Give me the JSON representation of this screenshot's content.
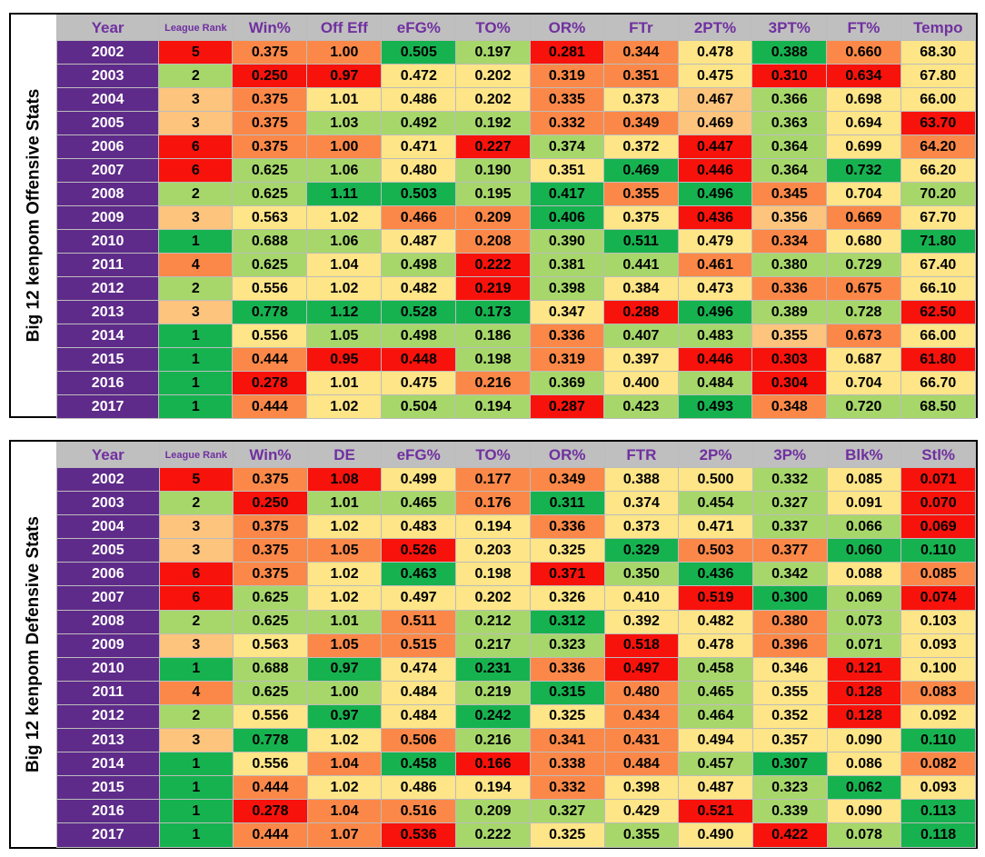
{
  "offense": {
    "side_label": "Big 12 kenpom Offensive Stats",
    "headers": [
      "Year",
      "League Rank",
      "Win%",
      "Off Eff",
      "eFG%",
      "TO%",
      "OR%",
      "FTr",
      "2PT%",
      "3PT%",
      "FT%",
      "Tempo"
    ],
    "rows": [
      [
        "2002",
        "5",
        "0.375",
        "1.00",
        "0.505",
        "0.197",
        "0.281",
        "0.344",
        "0.478",
        "0.388",
        "0.660",
        "68.30"
      ],
      [
        "2003",
        "2",
        "0.250",
        "0.97",
        "0.472",
        "0.202",
        "0.319",
        "0.351",
        "0.475",
        "0.310",
        "0.634",
        "67.80"
      ],
      [
        "2004",
        "3",
        "0.375",
        "1.01",
        "0.486",
        "0.202",
        "0.335",
        "0.373",
        "0.467",
        "0.366",
        "0.698",
        "66.00"
      ],
      [
        "2005",
        "3",
        "0.375",
        "1.03",
        "0.492",
        "0.192",
        "0.332",
        "0.349",
        "0.469",
        "0.363",
        "0.694",
        "63.70"
      ],
      [
        "2006",
        "6",
        "0.375",
        "1.00",
        "0.471",
        "0.227",
        "0.374",
        "0.372",
        "0.447",
        "0.364",
        "0.699",
        "64.20"
      ],
      [
        "2007",
        "6",
        "0.625",
        "1.06",
        "0.480",
        "0.190",
        "0.351",
        "0.469",
        "0.446",
        "0.364",
        "0.732",
        "66.20"
      ],
      [
        "2008",
        "2",
        "0.625",
        "1.11",
        "0.503",
        "0.195",
        "0.417",
        "0.355",
        "0.496",
        "0.345",
        "0.704",
        "70.20"
      ],
      [
        "2009",
        "3",
        "0.563",
        "1.02",
        "0.466",
        "0.209",
        "0.406",
        "0.375",
        "0.436",
        "0.356",
        "0.669",
        "67.70"
      ],
      [
        "2010",
        "1",
        "0.688",
        "1.06",
        "0.487",
        "0.208",
        "0.390",
        "0.511",
        "0.479",
        "0.334",
        "0.680",
        "71.80"
      ],
      [
        "2011",
        "4",
        "0.625",
        "1.04",
        "0.498",
        "0.222",
        "0.381",
        "0.441",
        "0.461",
        "0.380",
        "0.729",
        "67.40"
      ],
      [
        "2012",
        "2",
        "0.556",
        "1.02",
        "0.482",
        "0.219",
        "0.398",
        "0.384",
        "0.473",
        "0.336",
        "0.675",
        "66.10"
      ],
      [
        "2013",
        "3",
        "0.778",
        "1.12",
        "0.528",
        "0.173",
        "0.347",
        "0.288",
        "0.496",
        "0.389",
        "0.728",
        "62.50"
      ],
      [
        "2014",
        "1",
        "0.556",
        "1.05",
        "0.498",
        "0.186",
        "0.336",
        "0.407",
        "0.483",
        "0.355",
        "0.673",
        "66.00"
      ],
      [
        "2015",
        "1",
        "0.444",
        "0.95",
        "0.448",
        "0.198",
        "0.319",
        "0.397",
        "0.446",
        "0.303",
        "0.687",
        "61.80"
      ],
      [
        "2016",
        "1",
        "0.278",
        "1.01",
        "0.475",
        "0.216",
        "0.369",
        "0.400",
        "0.484",
        "0.304",
        "0.704",
        "66.70"
      ],
      [
        "2017",
        "1",
        "0.444",
        "1.02",
        "0.504",
        "0.194",
        "0.287",
        "0.423",
        "0.493",
        "0.348",
        "0.720",
        "68.50"
      ]
    ],
    "colors": [
      [
        "",
        "R",
        "O",
        "O",
        "G",
        "L",
        "R",
        "O",
        "Y",
        "G",
        "O",
        "Y"
      ],
      [
        "",
        "L",
        "R",
        "R",
        "Y",
        "Y",
        "O",
        "O",
        "Y",
        "R",
        "R",
        "Y"
      ],
      [
        "",
        "P",
        "O",
        "Y",
        "Y",
        "Y",
        "O",
        "Y",
        "P",
        "L",
        "Y",
        "Y"
      ],
      [
        "",
        "P",
        "O",
        "L",
        "L",
        "L",
        "O",
        "O",
        "P",
        "L",
        "Y",
        "R"
      ],
      [
        "",
        "R",
        "O",
        "O",
        "Y",
        "R",
        "L",
        "Y",
        "R",
        "L",
        "Y",
        "O"
      ],
      [
        "",
        "R",
        "L",
        "L",
        "Y",
        "L",
        "Y",
        "G",
        "R",
        "L",
        "G",
        "Y"
      ],
      [
        "",
        "L",
        "L",
        "G",
        "G",
        "L",
        "G",
        "O",
        "G",
        "O",
        "Y",
        "L"
      ],
      [
        "",
        "P",
        "Y",
        "Y",
        "O",
        "O",
        "G",
        "Y",
        "R",
        "P",
        "O",
        "Y"
      ],
      [
        "",
        "G",
        "L",
        "L",
        "Y",
        "O",
        "L",
        "G",
        "Y",
        "O",
        "Y",
        "G"
      ],
      [
        "",
        "O",
        "L",
        "Y",
        "L",
        "R",
        "L",
        "L",
        "O",
        "L",
        "L",
        "Y"
      ],
      [
        "",
        "L",
        "Y",
        "Y",
        "Y",
        "R",
        "L",
        "Y",
        "Y",
        "O",
        "O",
        "Y"
      ],
      [
        "",
        "P",
        "G",
        "G",
        "G",
        "G",
        "Y",
        "R",
        "G",
        "L",
        "L",
        "R"
      ],
      [
        "",
        "G",
        "Y",
        "L",
        "L",
        "L",
        "O",
        "L",
        "L",
        "P",
        "O",
        "Y"
      ],
      [
        "",
        "G",
        "O",
        "R",
        "R",
        "L",
        "O",
        "Y",
        "R",
        "R",
        "Y",
        "R"
      ],
      [
        "",
        "G",
        "R",
        "Y",
        "Y",
        "O",
        "L",
        "Y",
        "L",
        "R",
        "Y",
        "Y"
      ],
      [
        "",
        "G",
        "O",
        "Y",
        "L",
        "L",
        "R",
        "L",
        "G",
        "O",
        "L",
        "L"
      ]
    ]
  },
  "defense": {
    "side_label": "Big 12 kenpom Defensive Stats",
    "headers": [
      "Year",
      "League Rank",
      "Win%",
      "DE",
      "eFG%",
      "TO%",
      "OR%",
      "FTR",
      "2P%",
      "3P%",
      "Blk%",
      "Stl%"
    ],
    "rows": [
      [
        "2002",
        "5",
        "0.375",
        "1.08",
        "0.499",
        "0.177",
        "0.349",
        "0.388",
        "0.500",
        "0.332",
        "0.085",
        "0.071"
      ],
      [
        "2003",
        "2",
        "0.250",
        "1.01",
        "0.465",
        "0.176",
        "0.311",
        "0.374",
        "0.454",
        "0.327",
        "0.091",
        "0.070"
      ],
      [
        "2004",
        "3",
        "0.375",
        "1.02",
        "0.483",
        "0.194",
        "0.336",
        "0.373",
        "0.471",
        "0.337",
        "0.066",
        "0.069"
      ],
      [
        "2005",
        "3",
        "0.375",
        "1.05",
        "0.526",
        "0.203",
        "0.325",
        "0.329",
        "0.503",
        "0.377",
        "0.060",
        "0.110"
      ],
      [
        "2006",
        "6",
        "0.375",
        "1.02",
        "0.463",
        "0.198",
        "0.371",
        "0.350",
        "0.436",
        "0.342",
        "0.088",
        "0.085"
      ],
      [
        "2007",
        "6",
        "0.625",
        "1.02",
        "0.497",
        "0.202",
        "0.326",
        "0.410",
        "0.519",
        "0.300",
        "0.069",
        "0.074"
      ],
      [
        "2008",
        "2",
        "0.625",
        "1.01",
        "0.511",
        "0.212",
        "0.312",
        "0.392",
        "0.482",
        "0.380",
        "0.073",
        "0.103"
      ],
      [
        "2009",
        "3",
        "0.563",
        "1.05",
        "0.515",
        "0.217",
        "0.323",
        "0.518",
        "0.478",
        "0.396",
        "0.071",
        "0.093"
      ],
      [
        "2010",
        "1",
        "0.688",
        "0.97",
        "0.474",
        "0.231",
        "0.336",
        "0.497",
        "0.458",
        "0.346",
        "0.121",
        "0.100"
      ],
      [
        "2011",
        "4",
        "0.625",
        "1.00",
        "0.484",
        "0.219",
        "0.315",
        "0.480",
        "0.465",
        "0.355",
        "0.128",
        "0.083"
      ],
      [
        "2012",
        "2",
        "0.556",
        "0.97",
        "0.484",
        "0.242",
        "0.325",
        "0.434",
        "0.464",
        "0.352",
        "0.128",
        "0.092"
      ],
      [
        "2013",
        "3",
        "0.778",
        "1.02",
        "0.506",
        "0.216",
        "0.341",
        "0.431",
        "0.494",
        "0.357",
        "0.090",
        "0.110"
      ],
      [
        "2014",
        "1",
        "0.556",
        "1.04",
        "0.458",
        "0.166",
        "0.338",
        "0.484",
        "0.457",
        "0.307",
        "0.086",
        "0.082"
      ],
      [
        "2015",
        "1",
        "0.444",
        "1.02",
        "0.486",
        "0.194",
        "0.332",
        "0.398",
        "0.487",
        "0.323",
        "0.062",
        "0.093"
      ],
      [
        "2016",
        "1",
        "0.278",
        "1.04",
        "0.516",
        "0.209",
        "0.327",
        "0.429",
        "0.521",
        "0.339",
        "0.090",
        "0.113"
      ],
      [
        "2017",
        "1",
        "0.444",
        "1.07",
        "0.536",
        "0.222",
        "0.325",
        "0.355",
        "0.490",
        "0.422",
        "0.078",
        "0.118"
      ]
    ],
    "colors": [
      [
        "",
        "R",
        "O",
        "R",
        "Y",
        "O",
        "O",
        "Y",
        "Y",
        "L",
        "Y",
        "R"
      ],
      [
        "",
        "L",
        "R",
        "L",
        "L",
        "O",
        "G",
        "Y",
        "L",
        "L",
        "Y",
        "R"
      ],
      [
        "",
        "P",
        "O",
        "Y",
        "Y",
        "Y",
        "O",
        "Y",
        "Y",
        "L",
        "L",
        "R"
      ],
      [
        "",
        "P",
        "O",
        "O",
        "R",
        "Y",
        "Y",
        "G",
        "O",
        "O",
        "G",
        "G"
      ],
      [
        "",
        "R",
        "O",
        "Y",
        "G",
        "Y",
        "R",
        "L",
        "G",
        "L",
        "Y",
        "O"
      ],
      [
        "",
        "R",
        "L",
        "Y",
        "Y",
        "Y",
        "Y",
        "Y",
        "R",
        "G",
        "L",
        "R"
      ],
      [
        "",
        "L",
        "L",
        "L",
        "O",
        "L",
        "G",
        "Y",
        "Y",
        "O",
        "L",
        "Y"
      ],
      [
        "",
        "P",
        "Y",
        "O",
        "O",
        "L",
        "L",
        "R",
        "Y",
        "O",
        "L",
        "Y"
      ],
      [
        "",
        "G",
        "L",
        "G",
        "Y",
        "G",
        "O",
        "R",
        "L",
        "Y",
        "R",
        "Y"
      ],
      [
        "",
        "O",
        "L",
        "L",
        "Y",
        "L",
        "G",
        "O",
        "L",
        "Y",
        "R",
        "O"
      ],
      [
        "",
        "L",
        "Y",
        "G",
        "Y",
        "G",
        "Y",
        "O",
        "L",
        "Y",
        "R",
        "Y"
      ],
      [
        "",
        "P",
        "G",
        "Y",
        "O",
        "L",
        "O",
        "O",
        "Y",
        "Y",
        "Y",
        "G"
      ],
      [
        "",
        "G",
        "Y",
        "O",
        "G",
        "R",
        "O",
        "O",
        "L",
        "G",
        "Y",
        "O"
      ],
      [
        "",
        "G",
        "O",
        "Y",
        "Y",
        "Y",
        "O",
        "Y",
        "Y",
        "L",
        "G",
        "Y"
      ],
      [
        "",
        "G",
        "R",
        "O",
        "O",
        "L",
        "L",
        "Y",
        "R",
        "L",
        "Y",
        "G"
      ],
      [
        "",
        "G",
        "O",
        "O",
        "R",
        "L",
        "Y",
        "L",
        "Y",
        "R",
        "L",
        "G"
      ]
    ]
  },
  "palette": {
    "R": "#f8120c",
    "O": "#fb8848",
    "Y": "#fee587",
    "L": "#a7d76b",
    "G": "#17b250",
    "P": "#fdc47d",
    "year_bg": "#5f2b8a",
    "header_bg": "#bfbfbf",
    "header_text": "#7030a0"
  }
}
